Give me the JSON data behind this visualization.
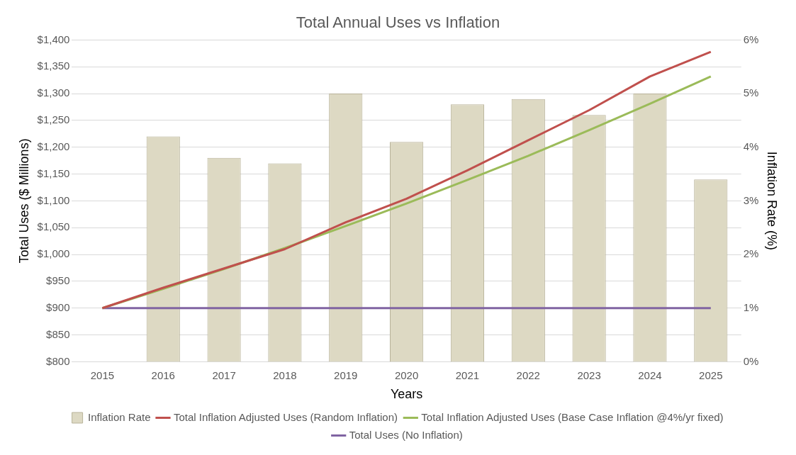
{
  "chart_data": {
    "type": "bar",
    "title": "Total Annual Uses vs Inflation",
    "xlabel": "Years",
    "ylabel": "Total Uses ($ Millions)",
    "y2label": "Inflation Rate (%)",
    "categories": [
      "2015",
      "2016",
      "2017",
      "2018",
      "2019",
      "2020",
      "2021",
      "2022",
      "2023",
      "2024",
      "2025"
    ],
    "series": [
      {
        "name": "Inflation Rate",
        "axis": "y2",
        "color": "#ddd9c3",
        "values": [
          null,
          4.2,
          3.8,
          3.7,
          5.0,
          4.1,
          4.8,
          4.9,
          4.6,
          5.0,
          3.4
        ]
      },
      {
        "name": "Total Inflation Adjusted Uses (Random Inflation)",
        "type": "line",
        "color": "#c0504d",
        "values": [
          900,
          938,
          974,
          1010,
          1060,
          1104,
          1157,
          1213,
          1269,
          1332,
          1378
        ]
      },
      {
        "name": "Total Inflation Adjusted Uses (Base Case Inflation @4%/yr fixed)",
        "type": "line",
        "color": "#9bbb59",
        "values": [
          900,
          936,
          973,
          1012,
          1053,
          1095,
          1139,
          1184,
          1232,
          1281,
          1332
        ]
      },
      {
        "name": "Total Uses (No Inflation)",
        "type": "line",
        "color": "#8064a2",
        "values": [
          900,
          900,
          900,
          900,
          900,
          900,
          900,
          900,
          900,
          900,
          900
        ]
      }
    ],
    "ylim": [
      800,
      1400
    ],
    "yticks": [
      {
        "value": 800,
        "label": "$800"
      },
      {
        "value": 850,
        "label": "$850"
      },
      {
        "value": 900,
        "label": "$900"
      },
      {
        "value": 950,
        "label": "$950"
      },
      {
        "value": 1000,
        "label": "$1,000"
      },
      {
        "value": 1050,
        "label": "$1,050"
      },
      {
        "value": 1100,
        "label": "$1,100"
      },
      {
        "value": 1150,
        "label": "$1,150"
      },
      {
        "value": 1200,
        "label": "$1,200"
      },
      {
        "value": 1250,
        "label": "$1,250"
      },
      {
        "value": 1300,
        "label": "$1,300"
      },
      {
        "value": 1350,
        "label": "$1,350"
      },
      {
        "value": 1400,
        "label": "$1,400"
      }
    ],
    "y2lim": [
      0,
      6
    ],
    "y2ticks": [
      {
        "value": 0,
        "label": "0%"
      },
      {
        "value": 1,
        "label": "1%"
      },
      {
        "value": 2,
        "label": "2%"
      },
      {
        "value": 3,
        "label": "3%"
      },
      {
        "value": 4,
        "label": "4%"
      },
      {
        "value": 5,
        "label": "5%"
      },
      {
        "value": 6,
        "label": "6%"
      }
    ],
    "grid": "y",
    "legend": "bottom",
    "marker": "none",
    "line_style": "solid"
  }
}
